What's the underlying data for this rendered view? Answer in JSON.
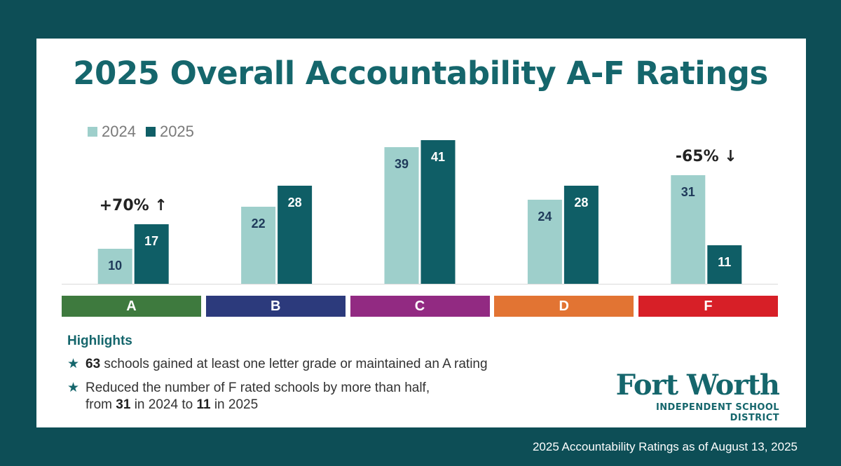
{
  "chart_data": {
    "type": "bar",
    "title": "2025 Overall Accountability A-F Ratings",
    "categories": [
      "A",
      "B",
      "C",
      "D",
      "F"
    ],
    "category_colors": [
      "#3e7a3e",
      "#2c3a7c",
      "#922a82",
      "#e27433",
      "#d71f27"
    ],
    "series": [
      {
        "name": "2024",
        "values": [
          10,
          22,
          39,
          24,
          31
        ],
        "color": "#9ecfcb"
      },
      {
        "name": "2025",
        "values": [
          17,
          28,
          41,
          28,
          11
        ],
        "color": "#0f5e66"
      }
    ],
    "annotations": [
      {
        "category": "A",
        "text": "+70%",
        "arrow": "↑"
      },
      {
        "category": "F",
        "text": "-65%",
        "arrow": "↓"
      }
    ],
    "ylim": [
      0,
      45
    ],
    "grid": false,
    "legend_position": "top-left"
  },
  "highlights": {
    "title": "Highlights",
    "star": "★",
    "item1_bold": "63",
    "item1_text": " schools gained at least one letter grade or maintained an A rating",
    "item2_line1": "Reduced the number of F rated schools by more than half,",
    "item2_pre": "from ",
    "item2_bold1": "31",
    "item2_mid": " in 2024 to ",
    "item2_bold2": "11",
    "item2_post": " in 2025"
  },
  "logo": {
    "main": "Fort Worth",
    "sub": "INDEPENDENT SCHOOL DISTRICT"
  },
  "footer": "2025 Accountability Ratings as of August 13, 2025"
}
